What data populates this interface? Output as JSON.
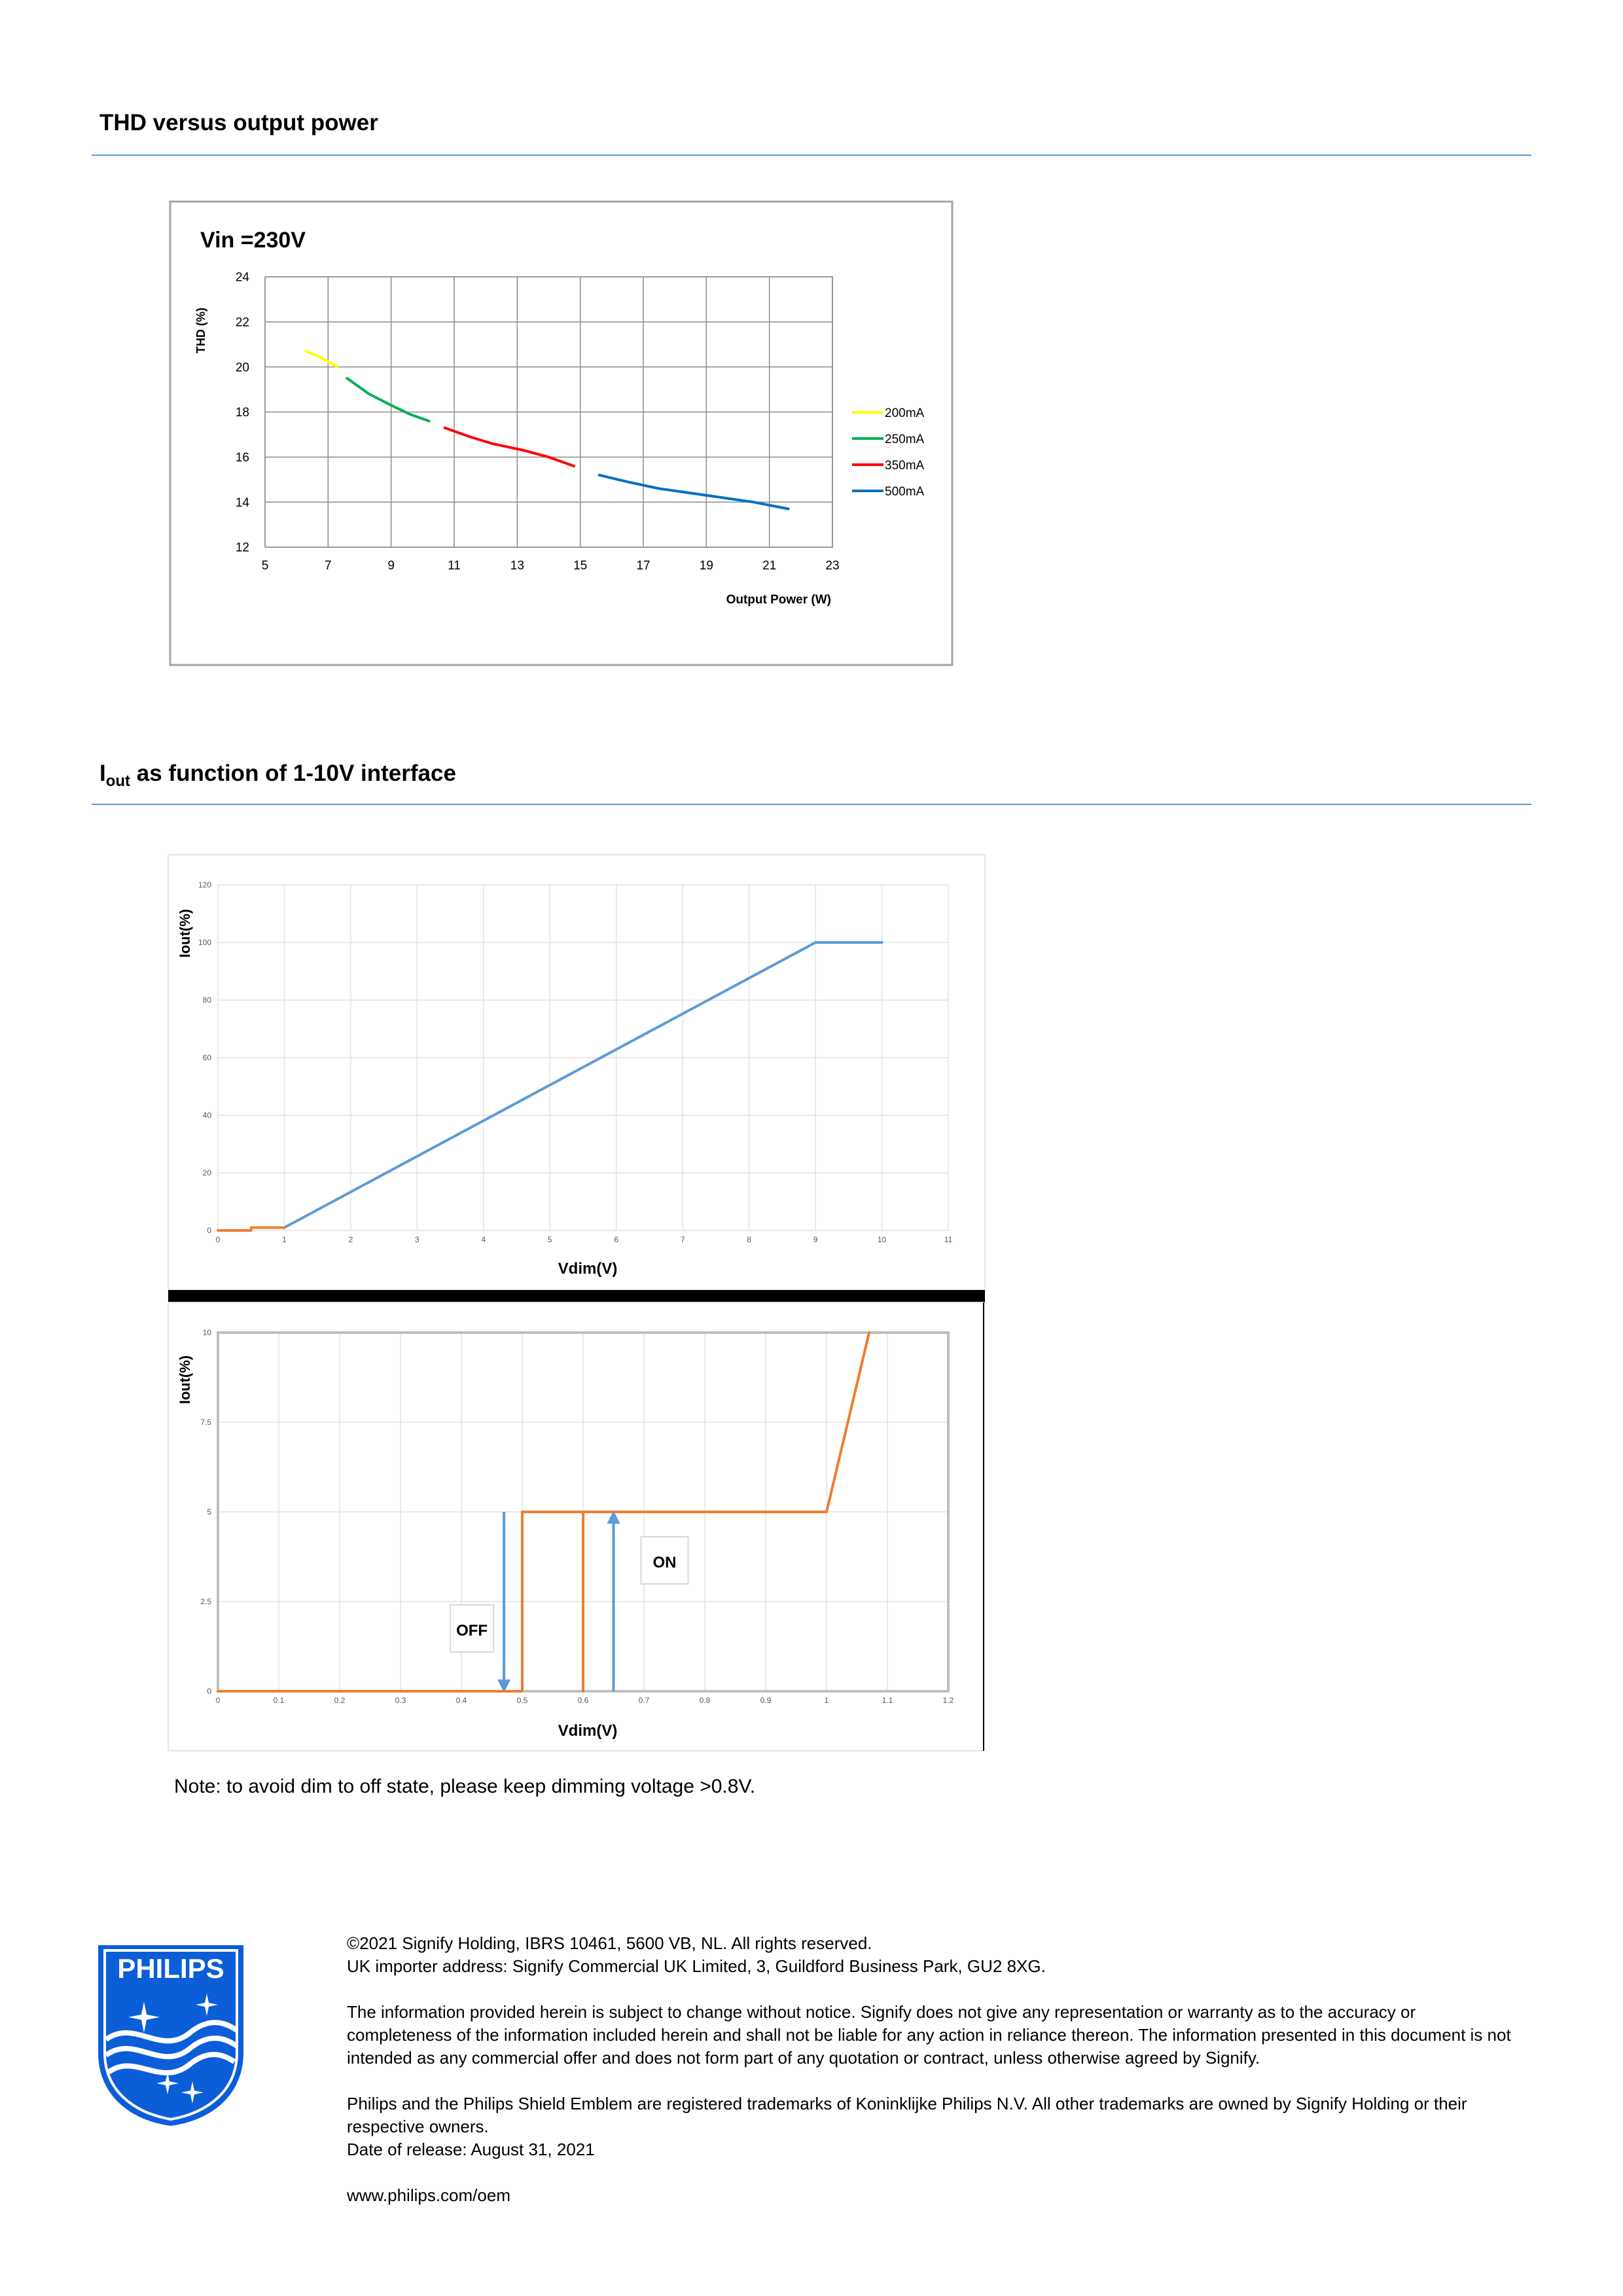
{
  "section1": {
    "title": "THD versus output power"
  },
  "section2": {
    "title_main": "I",
    "title_sub": "out",
    "title_rest": " as function of 1-10V interface"
  },
  "chart_data": [
    {
      "type": "line",
      "title": "Vin =230V",
      "xlabel": "Output Power (W)",
      "ylabel": "THD   (%)",
      "xlim": [
        5,
        23
      ],
      "ylim": [
        12,
        24
      ],
      "xticks": [
        5,
        7,
        9,
        11,
        13,
        15,
        17,
        19,
        21,
        23
      ],
      "yticks": [
        12,
        14,
        16,
        18,
        20,
        22,
        24
      ],
      "grid": true,
      "legend_position": "right",
      "series": [
        {
          "name": "200mA",
          "color": "#ffff00",
          "x": [
            6.3,
            6.8,
            7.3
          ],
          "y": [
            20.7,
            20.4,
            20.0
          ]
        },
        {
          "name": "250mA",
          "color": "#00b050",
          "x": [
            7.6,
            8.3,
            9.0,
            9.6,
            10.2
          ],
          "y": [
            19.5,
            18.8,
            18.3,
            17.9,
            17.6
          ]
        },
        {
          "name": "350mA",
          "color": "#ff0000",
          "x": [
            10.7,
            11.5,
            12.2,
            13.2,
            14.0,
            14.8
          ],
          "y": [
            17.3,
            16.9,
            16.6,
            16.3,
            16.0,
            15.6
          ]
        },
        {
          "name": "500mA",
          "color": "#0070c0",
          "x": [
            15.6,
            16.5,
            17.5,
            18.5,
            19.5,
            20.5,
            21.6
          ],
          "y": [
            15.2,
            14.9,
            14.6,
            14.4,
            14.2,
            14.0,
            13.7
          ]
        }
      ]
    },
    {
      "type": "line",
      "xlabel": "Vdim(V)",
      "ylabel": "Iout(%)",
      "xlim": [
        0,
        11
      ],
      "ylim": [
        0,
        120
      ],
      "xticks": [
        0,
        1,
        2,
        3,
        4,
        5,
        6,
        7,
        8,
        9,
        10,
        11
      ],
      "yticks": [
        0,
        20,
        40,
        60,
        80,
        100,
        120
      ],
      "grid": true,
      "series": [
        {
          "color": "#5b9bd5",
          "x": [
            1,
            9,
            10
          ],
          "y": [
            1,
            100,
            100
          ]
        },
        {
          "color": "#ed7d31",
          "x": [
            0,
            0.5,
            0.5,
            1
          ],
          "y": [
            0,
            0,
            1,
            1
          ]
        }
      ]
    },
    {
      "type": "line",
      "xlabel": "Vdim(V)",
      "ylabel": "Iout(%)",
      "xlim": [
        0,
        1.2
      ],
      "ylim": [
        0,
        10
      ],
      "xticks": [
        "0",
        "0.1",
        "0.2",
        "0.3",
        "0.4",
        "0.5",
        "0.6",
        "0.7",
        "0.8",
        "0.9",
        "1",
        "1.1",
        "1.2"
      ],
      "yticks": [
        "0",
        "2.5",
        "5",
        "7.5",
        "10"
      ],
      "grid": true,
      "series": [
        {
          "color": "#ed7d31",
          "x": [
            0,
            0.5,
            0.5,
            1.0,
            1.07
          ],
          "y": [
            0,
            0,
            5,
            5,
            10
          ]
        },
        {
          "color": "#ed7d31",
          "x": [
            0.6,
            0.6
          ],
          "y": [
            0,
            5
          ]
        }
      ],
      "annotations": [
        {
          "text": "OFF",
          "arrow": "down",
          "arrow_x": 0.47
        },
        {
          "text": "ON",
          "arrow": "up",
          "arrow_x": 0.65
        }
      ]
    }
  ],
  "note": "Note: to avoid dim to off state, please keep dimming voltage >0.8V.",
  "footer": {
    "copyright": "©2021 Signify Holding, IBRS 10461, 5600 VB, NL. All rights reserved.",
    "importer": "UK importer address: Signify Commercial UK Limited, 3, Guildford Business Park, GU2 8XG.",
    "disclaimer": "The information provided herein is subject to change without notice. Signify does not give any representation or warranty as to the accuracy or completeness of the information included herein and shall not be liable for any action in reliance thereon. The information presented in this document is not intended as any commercial offer and does not form part of any quotation or contract, unless otherwise agreed by Signify.",
    "trademarks": "Philips and the Philips Shield Emblem are registered trademarks of Koninklijke Philips N.V. All other trademarks are owned by Signify Holding or their respective owners.",
    "release": "Date of release: August 31, 2021",
    "website": "www.philips.com/oem"
  },
  "logo": {
    "text": "PHILIPS",
    "color": "#0b5ed7"
  }
}
